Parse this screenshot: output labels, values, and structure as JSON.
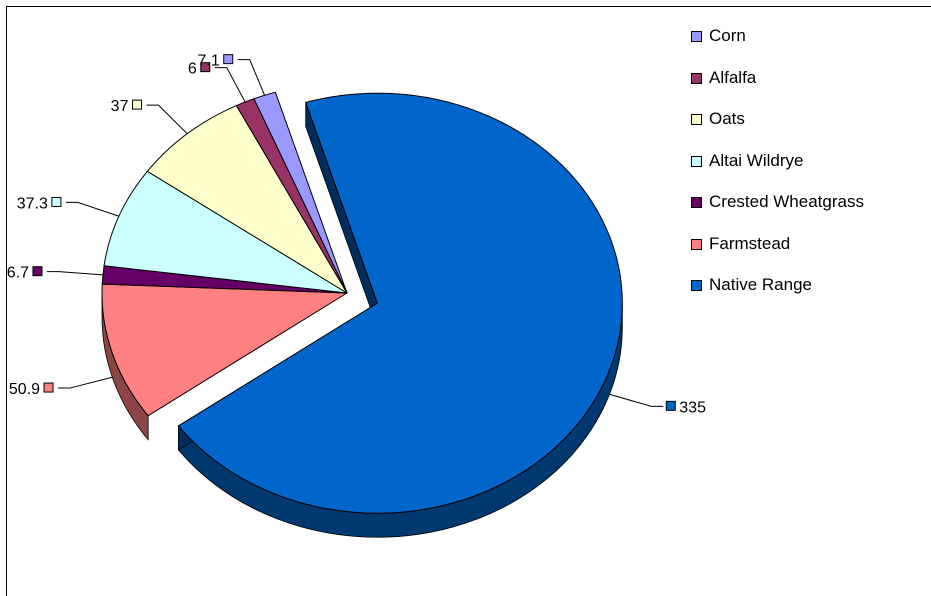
{
  "chart_data": {
    "type": "pie",
    "title": "",
    "exploded": "Native Range",
    "legend_position": "right",
    "slices": [
      {
        "label": "Corn",
        "value": 7.1,
        "color": "#9999ff"
      },
      {
        "label": "Alfalfa",
        "value": 6,
        "color": "#993366"
      },
      {
        "label": "Oats",
        "value": 37,
        "color": "#ffffcc"
      },
      {
        "label": "Altai Wildrye",
        "value": 37.3,
        "color": "#ccffff"
      },
      {
        "label": "Crested Wheatgrass",
        "value": 6.7,
        "color": "#660066"
      },
      {
        "label": "Farmstead",
        "value": 50.9,
        "color": "#ff8080"
      },
      {
        "label": "Native Range",
        "value": 335,
        "color": "#0066cc"
      }
    ],
    "data_labels": [
      "7.1",
      "6",
      "37",
      "37.3",
      "6.7",
      "50.9",
      "335"
    ]
  }
}
